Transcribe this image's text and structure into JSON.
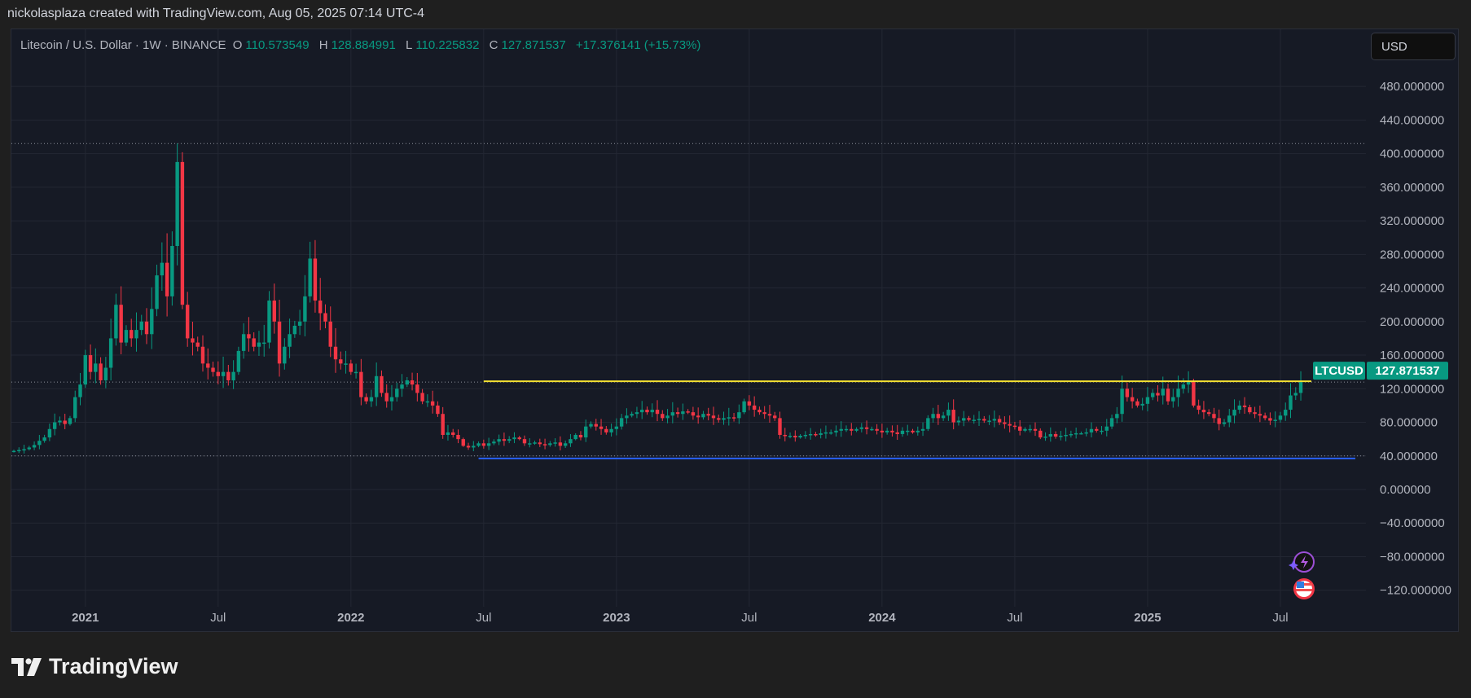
{
  "header": {
    "credit": "nickolasplaza created with TradingView.com, Aug 05, 2025 07:14 UTC-4"
  },
  "legend": {
    "symbol": "Litecoin / U.S. Dollar · 1W · BINANCE",
    "o_label": "O",
    "o": "110.573549",
    "h_label": "H",
    "h": "128.884991",
    "l_label": "L",
    "l": "110.225832",
    "c_label": "C",
    "c": "127.871537",
    "change": "+17.376141 (+15.73%)"
  },
  "currency_button": "USD",
  "price_tag": {
    "symbol": "LTCUSD",
    "price": "127.871537"
  },
  "brand": "TradingView",
  "colors": {
    "up": "#089981",
    "down": "#f23645",
    "resistance": "#f5e132",
    "support": "#2962ff",
    "bg": "#161a25"
  },
  "chart_data": {
    "type": "candlestick",
    "title": "Litecoin / U.S. Dollar · 1W · BINANCE",
    "interval": "1W",
    "start_week": "2020-09-28",
    "ylim": [
      -140,
      500
    ],
    "y_ticks": [
      480,
      440,
      400,
      360,
      320,
      280,
      240,
      200,
      160,
      120,
      80,
      40,
      0,
      -40,
      -80,
      -120
    ],
    "y_tick_labels": [
      "480.000000",
      "440.000000",
      "400.000000",
      "360.000000",
      "320.000000",
      "280.000000",
      "240.000000",
      "200.000000",
      "160.000000",
      "120.000000",
      "80.000000",
      "40.000000",
      "0.000000",
      "−40.000000",
      "−80.000000",
      "−120.000000"
    ],
    "x_ticks": [
      {
        "label": "2021",
        "week": 14,
        "bold": true
      },
      {
        "label": "Jul",
        "week": 40
      },
      {
        "label": "2022",
        "week": 66,
        "bold": true
      },
      {
        "label": "Jul",
        "week": 92
      },
      {
        "label": "2023",
        "week": 118,
        "bold": true
      },
      {
        "label": "Jul",
        "week": 144
      },
      {
        "label": "2024",
        "week": 170,
        "bold": true
      },
      {
        "label": "Jul",
        "week": 196
      },
      {
        "label": "2025",
        "week": 222,
        "bold": true
      },
      {
        "label": "Jul",
        "week": 248
      }
    ],
    "closes": [
      46,
      47,
      48,
      50,
      53,
      58,
      62,
      72,
      80,
      82,
      78,
      85,
      110,
      125,
      160,
      140,
      150,
      130,
      145,
      180,
      220,
      175,
      190,
      180,
      190,
      200,
      185,
      215,
      255,
      270,
      230,
      290,
      390,
      220,
      180,
      175,
      170,
      150,
      145,
      140,
      135,
      140,
      130,
      140,
      165,
      185,
      180,
      170,
      175,
      175,
      225,
      200,
      150,
      170,
      185,
      195,
      200,
      230,
      275,
      225,
      210,
      200,
      170,
      155,
      150,
      150,
      140,
      140,
      110,
      105,
      110,
      135,
      115,
      105,
      110,
      120,
      125,
      130,
      125,
      115,
      105,
      105,
      100,
      90,
      65,
      68,
      65,
      60,
      52,
      50,
      52,
      55,
      52,
      55,
      57,
      60,
      58,
      60,
      62,
      60,
      55,
      55,
      56,
      54,
      53,
      55,
      56,
      52,
      55,
      60,
      65,
      62,
      75,
      78,
      75,
      72,
      68,
      72,
      75,
      85,
      88,
      90,
      92,
      95,
      92,
      95,
      90,
      85,
      88,
      92,
      90,
      93,
      92,
      88,
      86,
      90,
      88,
      85,
      83,
      85,
      86,
      85,
      92,
      105,
      100,
      95,
      92,
      90,
      88,
      85,
      65,
      64,
      64,
      62,
      64,
      65,
      66,
      65,
      67,
      68,
      68,
      70,
      72,
      72,
      70,
      72,
      74,
      72,
      72,
      70,
      68,
      70,
      68,
      66,
      70,
      70,
      68,
      70,
      72,
      85,
      90,
      85,
      88,
      95,
      80,
      82,
      85,
      83,
      83,
      84,
      82,
      82,
      84,
      80,
      78,
      76,
      75,
      70,
      72,
      72,
      70,
      62,
      63,
      66,
      63,
      64,
      65,
      66,
      67,
      67,
      68,
      72,
      70,
      70,
      75,
      85,
      90,
      120,
      110,
      105,
      100,
      102,
      110,
      115,
      112,
      120,
      105,
      110,
      120,
      125,
      128,
      100,
      95,
      92,
      90,
      85,
      78,
      80,
      88,
      95,
      100,
      98,
      92,
      90,
      88,
      85,
      82,
      83,
      88,
      95,
      112,
      115,
      128
    ],
    "notable_highs": [
      {
        "week": 32,
        "high": 412
      },
      {
        "week": 58,
        "high": 295
      }
    ],
    "last_close": 127.871537,
    "horizontal_lines": [
      {
        "name": "resistance",
        "price": 128.9,
        "from_week": 92,
        "color": "#f5e132"
      },
      {
        "name": "support",
        "price": 37,
        "from_week": 91,
        "color": "#2962ff"
      }
    ],
    "dotted_lines": [
      {
        "name": "range-high",
        "price": 412
      },
      {
        "name": "range-low",
        "price": 40
      }
    ],
    "grid": true
  }
}
